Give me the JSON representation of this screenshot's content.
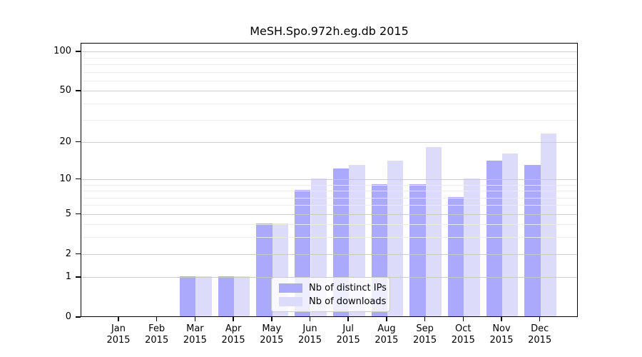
{
  "title": "MeSH.Spo.972h.eg.db 2015",
  "chart_data": {
    "type": "bar",
    "title": "MeSH.Spo.972h.eg.db 2015",
    "categories": [
      "Jan 2015",
      "Feb 2015",
      "Mar 2015",
      "Apr 2015",
      "May 2015",
      "Jun 2015",
      "Jul 2015",
      "Aug 2015",
      "Sep 2015",
      "Oct 2015",
      "Nov 2015",
      "Dec 2015"
    ],
    "series": [
      {
        "name": "Nb of distinct IPs",
        "color": "#aaa9fa",
        "values": [
          0,
          0,
          1,
          1,
          4,
          8,
          12,
          9,
          9,
          7,
          14,
          13
        ]
      },
      {
        "name": "Nb of downloads",
        "color": "#dcdbf9",
        "values": [
          0,
          0,
          1,
          1,
          4,
          10,
          13,
          14,
          18,
          10,
          16,
          23
        ]
      }
    ],
    "xlabel": "",
    "ylabel": "",
    "y_axis": {
      "scale": "log10(1+x)",
      "tick_values": [
        0,
        1,
        2,
        5,
        10,
        20,
        50,
        100
      ],
      "tick_labels": [
        "0",
        "1",
        "2",
        "5",
        "10",
        "20",
        "50",
        "100"
      ],
      "minor_gridline_values": [
        3,
        4,
        6,
        7,
        8,
        9,
        30,
        40,
        60,
        70,
        80,
        90
      ],
      "major_gridline_values": [
        1,
        2,
        5,
        10,
        20,
        50,
        100
      ],
      "range_top_value": 113
    },
    "grid": true,
    "legend_position": "lower center",
    "axis_color": "#000000",
    "major_grid_color": "#c9c9c9",
    "minor_grid_color": "#ececec"
  }
}
